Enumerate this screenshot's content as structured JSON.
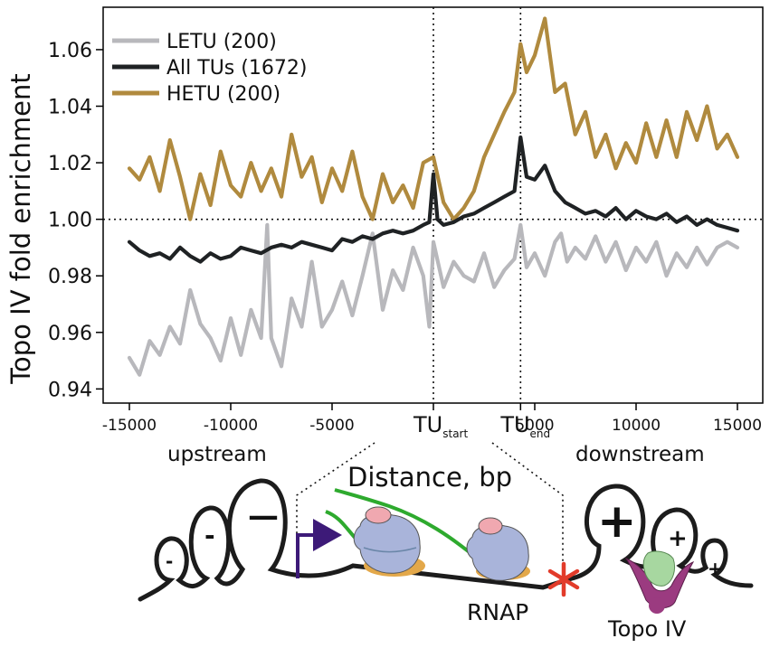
{
  "chart_data": {
    "type": "line",
    "title": "",
    "xlabel": "Distance, bp",
    "ylabel": "Topo IV fold enrichment",
    "xlim": [
      -15000,
      15000
    ],
    "ylim": [
      0.935,
      1.075
    ],
    "grid": false,
    "legend_position": "top-left",
    "x_ticks": [
      {
        "value": -15000,
        "label": "-15000"
      },
      {
        "value": -10000,
        "label": "-10000"
      },
      {
        "value": -5000,
        "label": "-5000"
      },
      {
        "value": 5000,
        "label": "5000"
      },
      {
        "value": 10000,
        "label": "10000"
      },
      {
        "value": 15000,
        "label": "15000"
      }
    ],
    "y_ticks": [
      {
        "value": 0.94,
        "label": "0.94"
      },
      {
        "value": 0.96,
        "label": "0.96"
      },
      {
        "value": 0.98,
        "label": "0.98"
      },
      {
        "value": 1.0,
        "label": "1.00"
      },
      {
        "value": 1.02,
        "label": "1.02"
      },
      {
        "value": 1.04,
        "label": "1.04"
      },
      {
        "value": 1.06,
        "label": "1.06"
      }
    ],
    "reference_lines": {
      "horizontal": 1.0,
      "vertical": [
        0,
        4300
      ]
    },
    "tu_markers": [
      {
        "value": 0,
        "main": "TU",
        "sub": "start"
      },
      {
        "value": 4300,
        "main": "TU",
        "sub": "end"
      }
    ],
    "series": [
      {
        "name": "LETU (200)",
        "color": "#b8b8bc",
        "x": [
          -15000,
          -14500,
          -14000,
          -13500,
          -13000,
          -12500,
          -12000,
          -11500,
          -11000,
          -10500,
          -10000,
          -9500,
          -9000,
          -8500,
          -8200,
          -8000,
          -7500,
          -7000,
          -6500,
          -6000,
          -5500,
          -5000,
          -4500,
          -4000,
          -3500,
          -3000,
          -2500,
          -2000,
          -1500,
          -1000,
          -500,
          -200,
          0,
          500,
          1000,
          1500,
          2000,
          2500,
          3000,
          3500,
          4000,
          4300,
          4600,
          5000,
          5500,
          6000,
          6300,
          6600,
          7000,
          7500,
          8000,
          8500,
          9000,
          9500,
          10000,
          10500,
          11000,
          11500,
          12000,
          12500,
          13000,
          13500,
          14000,
          14500,
          15000
        ],
        "values": [
          0.951,
          0.945,
          0.957,
          0.952,
          0.962,
          0.956,
          0.975,
          0.963,
          0.958,
          0.95,
          0.965,
          0.952,
          0.968,
          0.958,
          0.998,
          0.958,
          0.948,
          0.972,
          0.962,
          0.985,
          0.962,
          0.968,
          0.978,
          0.966,
          0.98,
          0.995,
          0.968,
          0.982,
          0.975,
          0.99,
          0.98,
          0.962,
          0.992,
          0.976,
          0.985,
          0.98,
          0.978,
          0.988,
          0.976,
          0.982,
          0.986,
          0.998,
          0.983,
          0.988,
          0.98,
          0.992,
          0.995,
          0.985,
          0.99,
          0.986,
          0.994,
          0.985,
          0.992,
          0.982,
          0.99,
          0.985,
          0.992,
          0.98,
          0.988,
          0.983,
          0.99,
          0.984,
          0.99,
          0.992,
          0.99
        ]
      },
      {
        "name": "All TUs (1672)",
        "color": "#1f2224",
        "x": [
          -15000,
          -14500,
          -14000,
          -13500,
          -13000,
          -12500,
          -12000,
          -11500,
          -11000,
          -10500,
          -10000,
          -9500,
          -9000,
          -8500,
          -8000,
          -7500,
          -7000,
          -6500,
          -6000,
          -5500,
          -5000,
          -4500,
          -4000,
          -3500,
          -3000,
          -2500,
          -2000,
          -1500,
          -1000,
          -500,
          -200,
          0,
          200,
          500,
          1000,
          1500,
          2000,
          2500,
          3000,
          3500,
          4000,
          4300,
          4600,
          5000,
          5500,
          6000,
          6500,
          7000,
          7500,
          8000,
          8500,
          9000,
          9500,
          10000,
          10500,
          11000,
          11500,
          12000,
          12500,
          13000,
          13500,
          14000,
          14500,
          15000
        ],
        "values": [
          0.992,
          0.989,
          0.987,
          0.988,
          0.986,
          0.99,
          0.987,
          0.985,
          0.988,
          0.986,
          0.987,
          0.99,
          0.989,
          0.988,
          0.99,
          0.991,
          0.99,
          0.992,
          0.991,
          0.99,
          0.989,
          0.993,
          0.992,
          0.994,
          0.993,
          0.995,
          0.996,
          0.995,
          0.996,
          0.998,
          0.999,
          1.016,
          1.0,
          0.998,
          0.999,
          1.001,
          1.002,
          1.004,
          1.006,
          1.008,
          1.01,
          1.029,
          1.015,
          1.014,
          1.019,
          1.01,
          1.006,
          1.004,
          1.002,
          1.003,
          1.001,
          1.004,
          1.0,
          1.003,
          1.001,
          1.0,
          1.002,
          0.999,
          1.001,
          0.998,
          1.0,
          0.998,
          0.997,
          0.996
        ]
      },
      {
        "name": "HETU (200)",
        "color": "#b08a3e",
        "x": [
          -15000,
          -14500,
          -14000,
          -13500,
          -13000,
          -12500,
          -12000,
          -11500,
          -11000,
          -10500,
          -10000,
          -9500,
          -9000,
          -8500,
          -8000,
          -7500,
          -7000,
          -6500,
          -6000,
          -5500,
          -5000,
          -4500,
          -4000,
          -3500,
          -3000,
          -2500,
          -2000,
          -1500,
          -1000,
          -500,
          0,
          500,
          1000,
          1500,
          2000,
          2500,
          3000,
          3500,
          4000,
          4300,
          4600,
          5000,
          5500,
          6000,
          6500,
          7000,
          7500,
          8000,
          8500,
          9000,
          9500,
          10000,
          10500,
          11000,
          11500,
          12000,
          12500,
          13000,
          13500,
          14000,
          14500,
          15000
        ],
        "values": [
          1.018,
          1.014,
          1.022,
          1.01,
          1.028,
          1.015,
          1.0,
          1.016,
          1.005,
          1.024,
          1.012,
          1.008,
          1.02,
          1.01,
          1.018,
          1.008,
          1.03,
          1.015,
          1.022,
          1.006,
          1.018,
          1.01,
          1.024,
          1.008,
          1.0,
          1.016,
          1.006,
          1.012,
          1.004,
          1.02,
          1.022,
          1.006,
          1.0,
          1.004,
          1.01,
          1.022,
          1.03,
          1.038,
          1.045,
          1.062,
          1.052,
          1.058,
          1.071,
          1.045,
          1.048,
          1.03,
          1.038,
          1.022,
          1.03,
          1.018,
          1.027,
          1.02,
          1.034,
          1.022,
          1.035,
          1.022,
          1.038,
          1.028,
          1.04,
          1.025,
          1.03,
          1.022
        ]
      }
    ]
  },
  "schematic": {
    "upstream_label": "upstream",
    "downstream_label": "downstream",
    "distance_label": "Distance, bp",
    "rnap_label": "RNAP",
    "topo_label": "Topo IV",
    "neg_loops": [
      "-",
      "-",
      "-",
      "—"
    ],
    "pos_loops": [
      "+",
      "+",
      "+"
    ],
    "colors": {
      "dna": "#1c1c1c",
      "promoter": "#3d1a78",
      "rna": "#2eaa2e",
      "rnap_body": "#a9b4da",
      "rnap_cap": "#f0a8b0",
      "rnap_base": "#e3a84a",
      "terminator": "#e23b2a",
      "topo_green": "#a7d7a0",
      "topo_purple": "#9b3b80"
    }
  }
}
